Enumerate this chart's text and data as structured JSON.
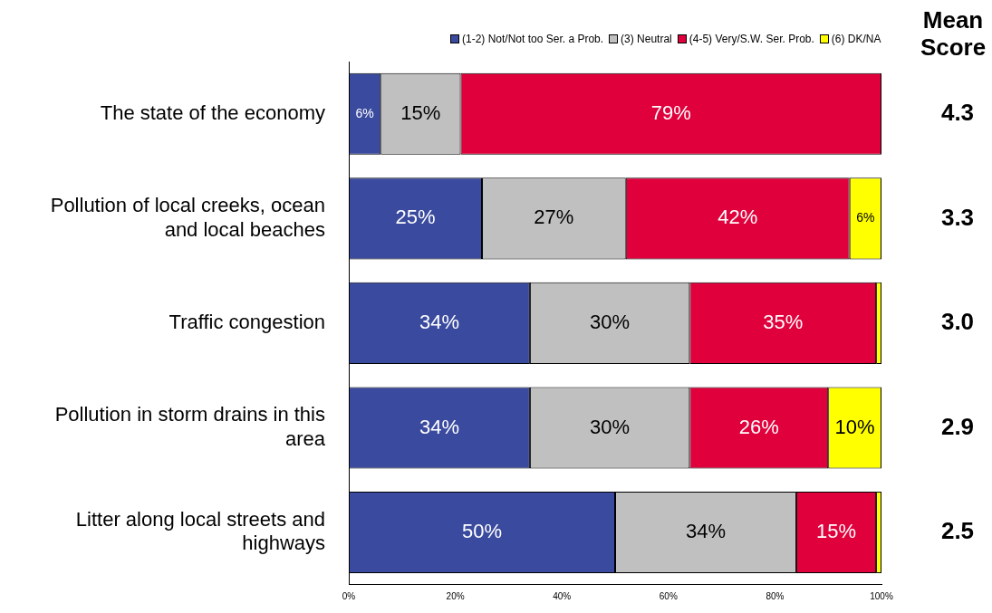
{
  "chart_data": {
    "type": "bar",
    "orientation": "horizontal",
    "stacked": true,
    "categories": [
      "The state of the economy",
      "Pollution of local creeks, ocean and local beaches",
      "Traffic congestion",
      "Pollution in storm drains in this area",
      "Litter along local streets and highways"
    ],
    "series": [
      {
        "name": "(1-2) Not/Not too Ser. a Prob.",
        "color": "#3a4a9e",
        "values": [
          6,
          25,
          34,
          34,
          50
        ],
        "value_labels": [
          "6%",
          "25%",
          "34%",
          "34%",
          "50%"
        ]
      },
      {
        "name": "(3) Neutral",
        "color": "#c0c0c0",
        "values": [
          15,
          27,
          30,
          30,
          34
        ],
        "value_labels": [
          "15%",
          "27%",
          "30%",
          "30%",
          "34%"
        ]
      },
      {
        "name": "(4-5) Very/S.W. Ser. Prob.",
        "color": "#e0003c",
        "values": [
          79,
          42,
          35,
          26,
          15
        ],
        "value_labels": [
          "79%",
          "42%",
          "35%",
          "26%",
          "15%"
        ]
      },
      {
        "name": "(6) DK/NA",
        "color": "#ffff00",
        "values": [
          0,
          6,
          1,
          10,
          1
        ],
        "value_labels": [
          null,
          "6%",
          null,
          "10%",
          null
        ]
      }
    ],
    "xlim": [
      0,
      100
    ],
    "xticks": [
      {
        "value": 0,
        "label": "0%"
      },
      {
        "value": 20,
        "label": "20%"
      },
      {
        "value": 40,
        "label": "40%"
      },
      {
        "value": 60,
        "label": "60%"
      },
      {
        "value": 80,
        "label": "80%"
      },
      {
        "value": 100,
        "label": "100%"
      }
    ],
    "legend": "top right",
    "annotations": [
      "Mean Score",
      "4.3",
      "3.3",
      "3.0",
      "2.9",
      "2.5"
    ]
  }
}
